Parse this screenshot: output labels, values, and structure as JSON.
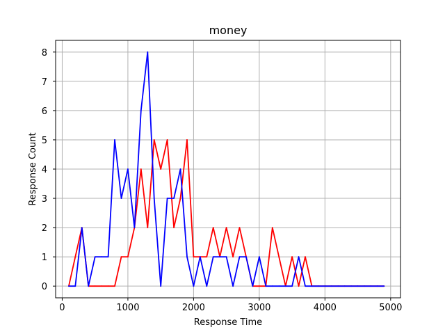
{
  "chart_data": {
    "type": "line",
    "title": "money",
    "xlabel": "Response Time",
    "ylabel": "Response Count",
    "xlim": [
      -100,
      5150
    ],
    "ylim": [
      -0.4,
      8.4
    ],
    "xticks": [
      0,
      1000,
      2000,
      3000,
      4000,
      5000
    ],
    "yticks": [
      0,
      1,
      2,
      3,
      4,
      5,
      6,
      7,
      8
    ],
    "grid": true,
    "x": [
      100,
      200,
      300,
      400,
      500,
      600,
      700,
      800,
      900,
      1000,
      1100,
      1200,
      1300,
      1400,
      1500,
      1600,
      1700,
      1800,
      1900,
      2000,
      2100,
      2200,
      2300,
      2400,
      2500,
      2600,
      2700,
      2800,
      2900,
      3000,
      3100,
      3200,
      3300,
      3400,
      3500,
      3600,
      3700,
      3800,
      3900,
      4000,
      4100,
      4200,
      4300,
      4400,
      4500,
      4600,
      4700,
      4800,
      4900
    ],
    "series": [
      {
        "color": "#ff0000",
        "values": [
          0,
          1,
          2,
          0,
          0,
          0,
          0,
          0,
          1,
          1,
          2,
          4,
          2,
          5,
          4,
          5,
          2,
          3,
          5,
          1,
          1,
          1,
          2,
          1,
          2,
          1,
          2,
          1,
          0,
          0,
          0,
          2,
          1,
          0,
          1,
          0,
          1,
          0,
          0,
          0,
          0,
          0,
          0,
          0,
          0,
          0,
          0,
          0,
          0
        ]
      },
      {
        "color": "#0000ff",
        "values": [
          0,
          0,
          2,
          0,
          1,
          1,
          1,
          5,
          3,
          4,
          2,
          6,
          8,
          3,
          0,
          3,
          3,
          4,
          1,
          0,
          1,
          0,
          1,
          1,
          1,
          0,
          1,
          1,
          0,
          1,
          0,
          0,
          0,
          0,
          0,
          1,
          0,
          0,
          0,
          0,
          0,
          0,
          0,
          0,
          0,
          0,
          0,
          0,
          0
        ]
      }
    ]
  }
}
